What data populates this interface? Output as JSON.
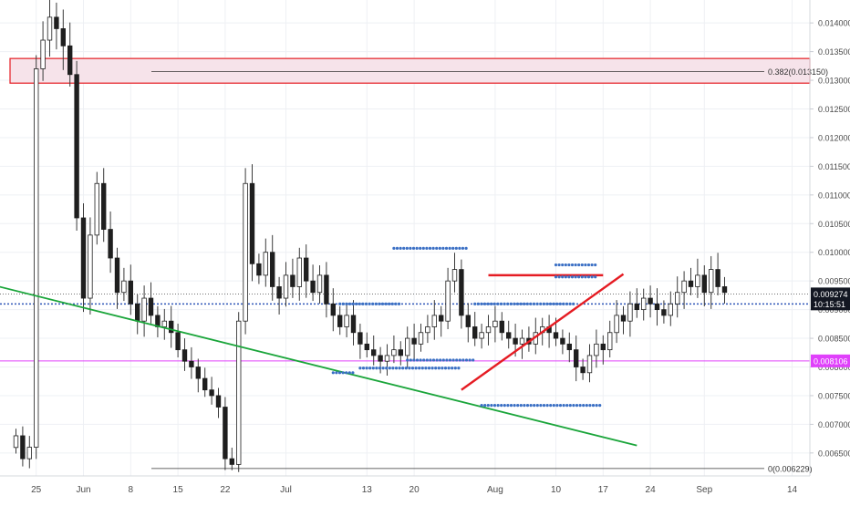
{
  "colors": {
    "background": "#ffffff",
    "grid": "#eef0f4",
    "candle_body_up": "#ffffff",
    "candle_body_down": "#1f1f1f",
    "candle_wick": "#3a3a3a",
    "triangle": "#e51c23",
    "trendline": "#1aa53a",
    "fib_zone_stroke": "#e51c23",
    "fib_zone_fill": "#f6e3ea",
    "fib_line": "#333333",
    "dots": "#3a6fc4",
    "magenta": "#e040fb",
    "price_tag_bg": "#131722",
    "magenta_tag_bg": "#e040fb",
    "axis_text": "#4a4a4a"
  },
  "chart_data": {
    "type": "candlestick",
    "ylim": [
      0.0061,
      0.0144
    ],
    "y_ticks": [
      "0.014000",
      "0.013500",
      "0.013000",
      "0.012500",
      "0.012000",
      "0.011500",
      "0.011000",
      "0.010500",
      "0.010000",
      "0.009500",
      "0.009000",
      "0.008500",
      "0.008000",
      "0.007500",
      "0.007000",
      "0.006500"
    ],
    "x_ticks": [
      "25",
      "Jun",
      "8",
      "15",
      "22",
      "Jul",
      "13",
      "20",
      "Aug",
      "10",
      "17",
      "24",
      "Sep",
      "14"
    ],
    "x_tick_days": [
      -7,
      0,
      7,
      14,
      21,
      30,
      42,
      49,
      61,
      70,
      77,
      84,
      92,
      105
    ],
    "first_candle_day": -10,
    "closes": [
      0.0068,
      0.0064,
      0.0066,
      0.0132,
      0.0137,
      0.0141,
      0.0139,
      0.0136,
      0.0131,
      0.0106,
      0.0092,
      0.0103,
      0.0112,
      0.0104,
      0.0099,
      0.0093,
      0.0095,
      0.0091,
      0.0088,
      0.0092,
      0.0089,
      0.0087,
      0.0088,
      0.0086,
      0.0083,
      0.0081,
      0.008,
      0.0078,
      0.0076,
      0.0075,
      0.0073,
      0.0064,
      0.0063,
      0.0088,
      0.0112,
      0.0098,
      0.0096,
      0.01,
      0.0094,
      0.0092,
      0.0096,
      0.0094,
      0.0099,
      0.0095,
      0.0093,
      0.0096,
      0.0091,
      0.0089,
      0.0087,
      0.0089,
      0.0086,
      0.0084,
      0.0083,
      0.0082,
      0.0081,
      0.0082,
      0.0083,
      0.0082,
      0.0085,
      0.0084,
      0.0086,
      0.0087,
      0.0089,
      0.0088,
      0.0095,
      0.0097,
      0.0089,
      0.0087,
      0.0085,
      0.0086,
      0.0087,
      0.0088,
      0.0086,
      0.0085,
      0.0084,
      0.0085,
      0.0084,
      0.0086,
      0.0087,
      0.0086,
      0.0085,
      0.0084,
      0.0083,
      0.008,
      0.0079,
      0.0082,
      0.0084,
      0.0083,
      0.0086,
      0.0089,
      0.0088,
      0.0091,
      0.009,
      0.0092,
      0.0091,
      0.009,
      0.0089,
      0.0091,
      0.0093,
      0.0095,
      0.0094,
      0.0096,
      0.0093,
      0.0097,
      0.0094,
      0.0093
    ],
    "fib_zone": [
      0.01295,
      0.01338
    ],
    "fib_label": "0.382(0.013150)",
    "fib_zero_label": "0(0.006229)",
    "fib_zero_value": 0.006229,
    "triangle_top": {
      "start_day": 60,
      "end_day": 77,
      "y": 0.0096
    },
    "triangle_bottom": {
      "start_day": 56,
      "start_y": 0.0076,
      "end_day": 80,
      "end_y": 0.00962
    },
    "trendline": {
      "start_day": -22,
      "start_y": 0.00968,
      "end_day": 82,
      "end_y": 0.00663
    },
    "last_price": 0.009274,
    "last_price_label": "0.009274",
    "countdown_label": "10:15:51",
    "countdown_y": 0.0091,
    "magenta_price": 0.008106,
    "magenta_label": "0.008106",
    "dot_rows": [
      {
        "start_day": 46,
        "end_day": 57,
        "y": 0.01007
      },
      {
        "start_day": 70,
        "end_day": 76,
        "y": 0.00978
      },
      {
        "start_day": 70,
        "end_day": 76,
        "y": 0.00957
      },
      {
        "start_day": 38,
        "end_day": 47,
        "y": 0.0091
      },
      {
        "start_day": 58,
        "end_day": 73,
        "y": 0.0091
      },
      {
        "start_day": 48,
        "end_day": 58,
        "y": 0.00812
      },
      {
        "start_day": 41,
        "end_day": 56,
        "y": 0.00798
      },
      {
        "start_day": 37,
        "end_day": 40,
        "y": 0.0079
      },
      {
        "start_day": 59,
        "end_day": 77,
        "y": 0.00733
      }
    ]
  }
}
